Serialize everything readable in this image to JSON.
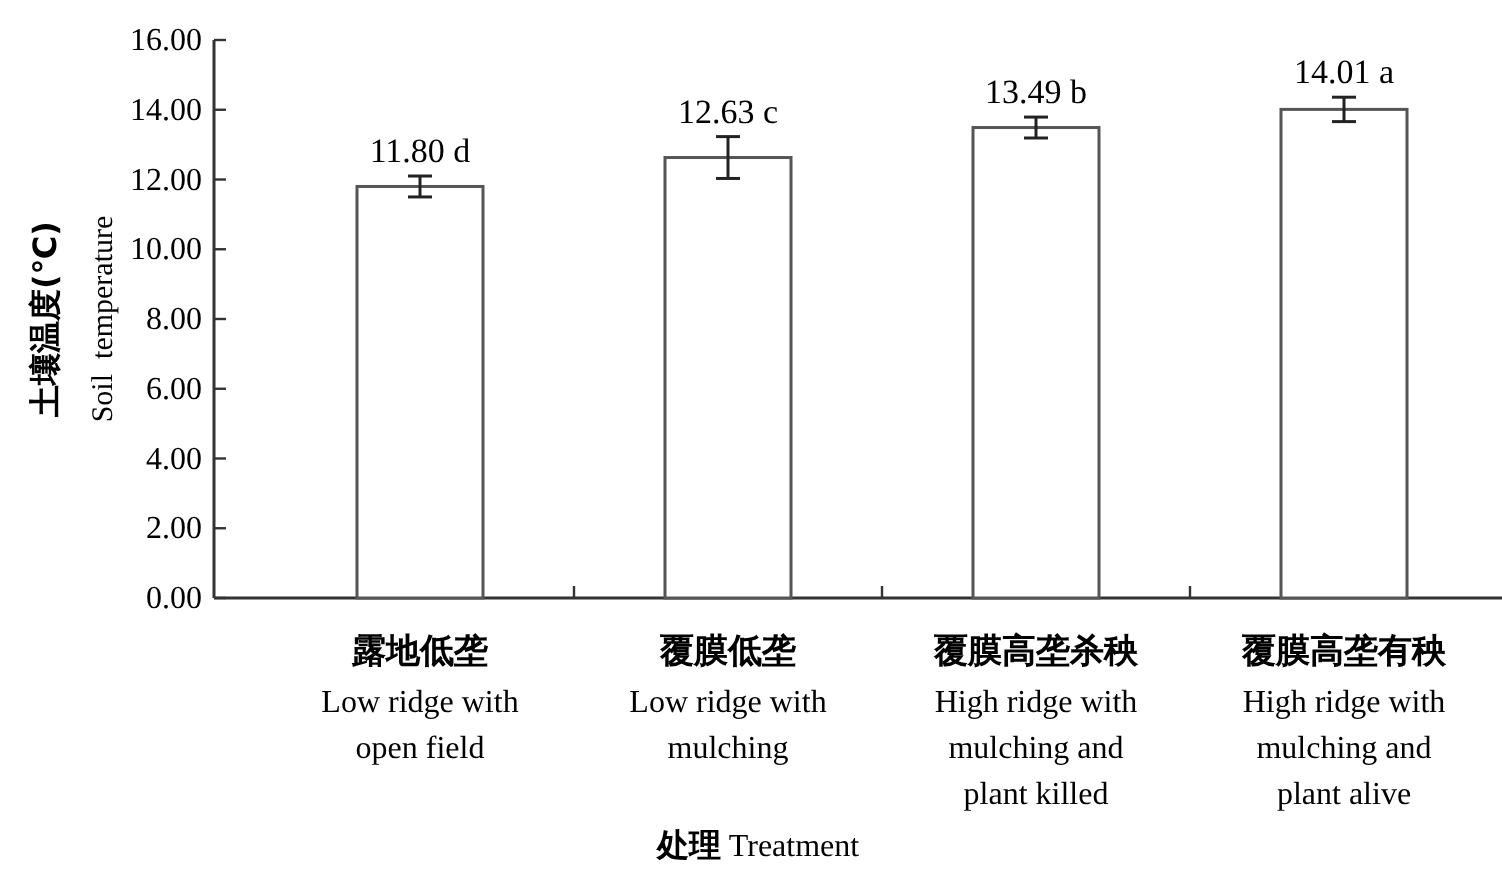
{
  "chart_data": {
    "type": "bar",
    "ylabel": "土壤温度(℃)\nSoil  temperature",
    "xlabel": "处理 Treatment",
    "categories": [
      "露地低垄\nLow ridge with\nopen field",
      "覆膜低垄\nLow ridge with\nmulching",
      "覆膜高垄杀秧\nHigh ridge with\nmulching and\nplant killed",
      "覆膜高垄有秧\nHigh ridge with\nmulching and\nplant alive"
    ],
    "values": [
      11.8,
      12.63,
      13.49,
      14.01
    ],
    "errors": [
      0.3,
      0.6,
      0.3,
      0.35
    ],
    "value_labels": [
      "11.80 d",
      "12.63 c",
      "13.49 b",
      "14.01 a"
    ],
    "color": "#ffffff",
    "ylim": [
      0,
      16
    ],
    "yticks": [
      {
        "value": 0,
        "label": "0.00"
      },
      {
        "value": 2,
        "label": "2.00"
      },
      {
        "value": 4,
        "label": "4.00"
      },
      {
        "value": 6,
        "label": "6.00"
      },
      {
        "value": 8,
        "label": "8.00"
      },
      {
        "value": 10,
        "label": "10.00"
      },
      {
        "value": 12,
        "label": "12.00"
      },
      {
        "value": 14,
        "label": "14.00"
      },
      {
        "value": 16,
        "label": "16.00"
      }
    ]
  }
}
